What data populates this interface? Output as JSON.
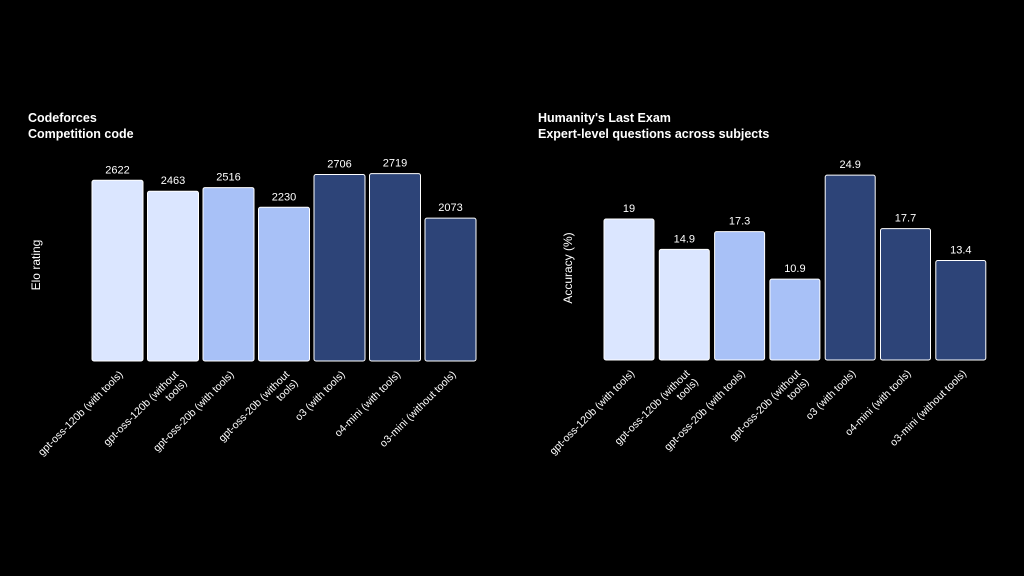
{
  "chart_data": [
    {
      "type": "bar",
      "title": "Codeforces",
      "subtitle": "Competition code",
      "xlabel": "",
      "ylabel": "Elo rating",
      "ylim": [
        0,
        2800
      ],
      "grid": false,
      "categories": [
        "gpt-oss-120b (with tools)",
        "gpt-oss-120b (without tools)",
        "gpt-oss-20b (with tools)",
        "gpt-oss-20b (without tools)",
        "o3 (with tools)",
        "o4-mini (with tools)",
        "o3-mini (without tools)"
      ],
      "category_lines": [
        [
          "gpt-oss-120b (with tools)"
        ],
        [
          "gpt-oss-120b (without",
          "tools)"
        ],
        [
          "gpt-oss-20b (with tools)"
        ],
        [
          "gpt-oss-20b (without",
          "tools)"
        ],
        [
          "o3 (with tools)"
        ],
        [
          "o4-mini (with tools)"
        ],
        [
          "o3-mini (without tools)"
        ]
      ],
      "values": [
        2622,
        2463,
        2516,
        2230,
        2706,
        2719,
        2073
      ],
      "value_labels": [
        "2622",
        "2463",
        "2516",
        "2230",
        "2706",
        "2719",
        "2073"
      ],
      "colors": [
        "#dbe6ff",
        "#dbe6ff",
        "#a8c1f7",
        "#a8c1f7",
        "#2d4478",
        "#2d4478",
        "#2d4478"
      ]
    },
    {
      "type": "bar",
      "title": "Humanity's Last Exam",
      "subtitle": "Expert-level questions across subjects",
      "xlabel": "",
      "ylabel": "Accuracy (%)",
      "ylim": [
        0,
        26
      ],
      "grid": false,
      "categories": [
        "gpt-oss-120b (with tools)",
        "gpt-oss-120b (without tools)",
        "gpt-oss-20b (with tools)",
        "gpt-oss-20b (without tools)",
        "o3 (with tools)",
        "o4-mini (with tools)",
        "o3-mini (without tools)"
      ],
      "category_lines": [
        [
          "gpt-oss-120b (with tools)"
        ],
        [
          "gpt-oss-120b (without",
          "tools)"
        ],
        [
          "gpt-oss-20b (with tools)"
        ],
        [
          "gpt-oss-20b (without",
          "tools)"
        ],
        [
          "o3 (with tools)"
        ],
        [
          "o4-mini (with tools)"
        ],
        [
          "o3-mini (without tools)"
        ]
      ],
      "values": [
        19,
        14.9,
        17.3,
        10.9,
        24.9,
        17.7,
        13.4
      ],
      "value_labels": [
        "19",
        "14.9",
        "17.3",
        "10.9",
        "24.9",
        "17.7",
        "13.4"
      ],
      "colors": [
        "#dbe6ff",
        "#dbe6ff",
        "#a8c1f7",
        "#a8c1f7",
        "#2d4478",
        "#2d4478",
        "#2d4478"
      ]
    }
  ]
}
